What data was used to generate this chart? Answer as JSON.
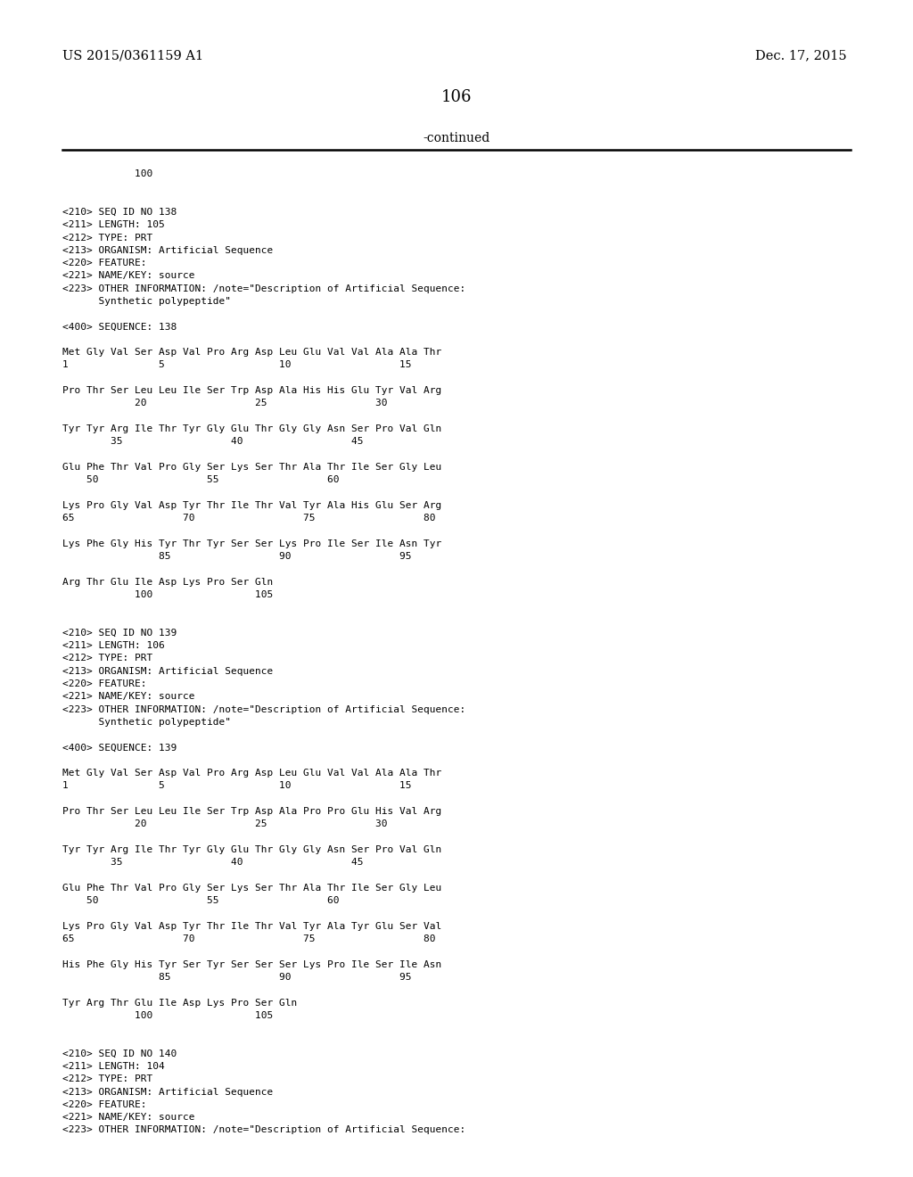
{
  "bg_color": "#ffffff",
  "header_left": "US 2015/0361159 A1",
  "header_right": "Dec. 17, 2015",
  "page_number": "106",
  "continued_text": "-continued",
  "lines": [
    "            100",
    "",
    "",
    "<210> SEQ ID NO 138",
    "<211> LENGTH: 105",
    "<212> TYPE: PRT",
    "<213> ORGANISM: Artificial Sequence",
    "<220> FEATURE:",
    "<221> NAME/KEY: source",
    "<223> OTHER INFORMATION: /note=\"Description of Artificial Sequence:",
    "      Synthetic polypeptide\"",
    "",
    "<400> SEQUENCE: 138",
    "",
    "Met Gly Val Ser Asp Val Pro Arg Asp Leu Glu Val Val Ala Ala Thr",
    "1               5                   10                  15",
    "",
    "Pro Thr Ser Leu Leu Ile Ser Trp Asp Ala His His Glu Tyr Val Arg",
    "            20                  25                  30",
    "",
    "Tyr Tyr Arg Ile Thr Tyr Gly Glu Thr Gly Gly Asn Ser Pro Val Gln",
    "        35                  40                  45",
    "",
    "Glu Phe Thr Val Pro Gly Ser Lys Ser Thr Ala Thr Ile Ser Gly Leu",
    "    50                  55                  60",
    "",
    "Lys Pro Gly Val Asp Tyr Thr Ile Thr Val Tyr Ala His Glu Ser Arg",
    "65                  70                  75                  80",
    "",
    "Lys Phe Gly His Tyr Thr Tyr Ser Ser Lys Pro Ile Ser Ile Asn Tyr",
    "                85                  90                  95",
    "",
    "Arg Thr Glu Ile Asp Lys Pro Ser Gln",
    "            100                 105",
    "",
    "",
    "<210> SEQ ID NO 139",
    "<211> LENGTH: 106",
    "<212> TYPE: PRT",
    "<213> ORGANISM: Artificial Sequence",
    "<220> FEATURE:",
    "<221> NAME/KEY: source",
    "<223> OTHER INFORMATION: /note=\"Description of Artificial Sequence:",
    "      Synthetic polypeptide\"",
    "",
    "<400> SEQUENCE: 139",
    "",
    "Met Gly Val Ser Asp Val Pro Arg Asp Leu Glu Val Val Ala Ala Thr",
    "1               5                   10                  15",
    "",
    "Pro Thr Ser Leu Leu Ile Ser Trp Asp Ala Pro Pro Glu His Val Arg",
    "            20                  25                  30",
    "",
    "Tyr Tyr Arg Ile Thr Tyr Gly Glu Thr Gly Gly Asn Ser Pro Val Gln",
    "        35                  40                  45",
    "",
    "Glu Phe Thr Val Pro Gly Ser Lys Ser Thr Ala Thr Ile Ser Gly Leu",
    "    50                  55                  60",
    "",
    "Lys Pro Gly Val Asp Tyr Thr Ile Thr Val Tyr Ala Tyr Glu Ser Val",
    "65                  70                  75                  80",
    "",
    "His Phe Gly His Tyr Ser Tyr Ser Ser Ser Lys Pro Ile Ser Ile Asn",
    "                85                  90                  95",
    "",
    "Tyr Arg Thr Glu Ile Asp Lys Pro Ser Gln",
    "            100                 105",
    "",
    "",
    "<210> SEQ ID NO 140",
    "<211> LENGTH: 104",
    "<212> TYPE: PRT",
    "<213> ORGANISM: Artificial Sequence",
    "<220> FEATURE:",
    "<221> NAME/KEY: source",
    "<223> OTHER INFORMATION: /note=\"Description of Artificial Sequence:"
  ]
}
